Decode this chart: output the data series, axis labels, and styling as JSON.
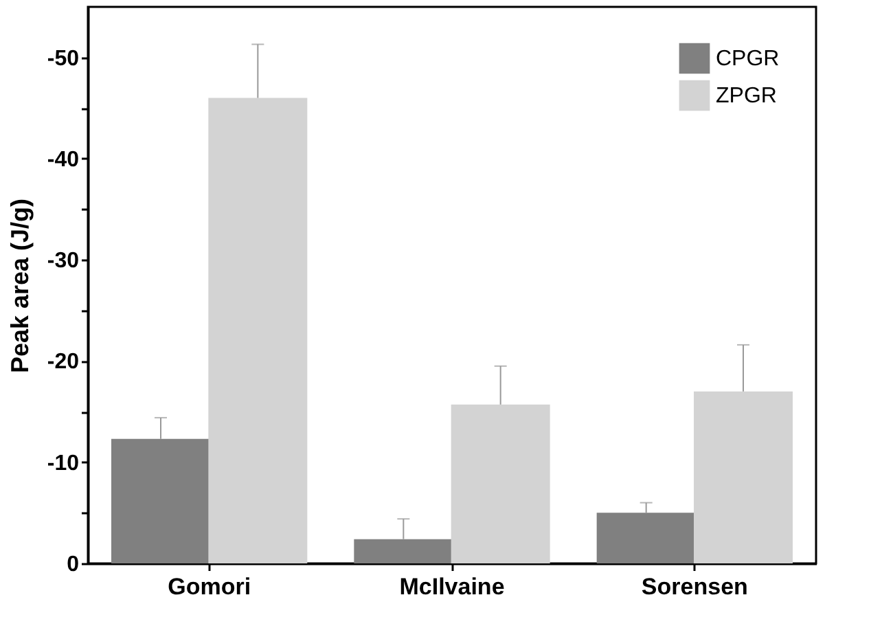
{
  "chart_data": {
    "type": "bar",
    "ylabel": "Peak area (J/g)",
    "categories": [
      "Gomori",
      "McIlvaine",
      "Sorensen"
    ],
    "series": [
      {
        "name": "CPGR",
        "color": "#808080",
        "values": [
          -12.3,
          -2.4,
          -5.0
        ],
        "errors": [
          [
            -14.4,
            -12.3
          ],
          [
            -4.4,
            -2.4
          ],
          [
            -6.0,
            -5.0
          ]
        ]
      },
      {
        "name": "ZPGR",
        "color": "#d3d3d3",
        "values": [
          -46.0,
          -15.7,
          -17.0
        ],
        "errors": [
          [
            -51.3,
            -46.0
          ],
          [
            -19.5,
            -15.7
          ],
          [
            -21.6,
            -17.0
          ]
        ]
      }
    ],
    "ylim": [
      0,
      -55
    ],
    "yticks": [
      0,
      {
        "value": -5,
        "label": null
      },
      -10,
      {
        "value": -15,
        "label": null
      },
      -20,
      {
        "value": -25,
        "label": null
      },
      -30,
      {
        "value": -35,
        "label": null
      },
      -40,
      {
        "value": -45,
        "label": null
      },
      -50
    ],
    "grid": false,
    "legend": "top right"
  }
}
